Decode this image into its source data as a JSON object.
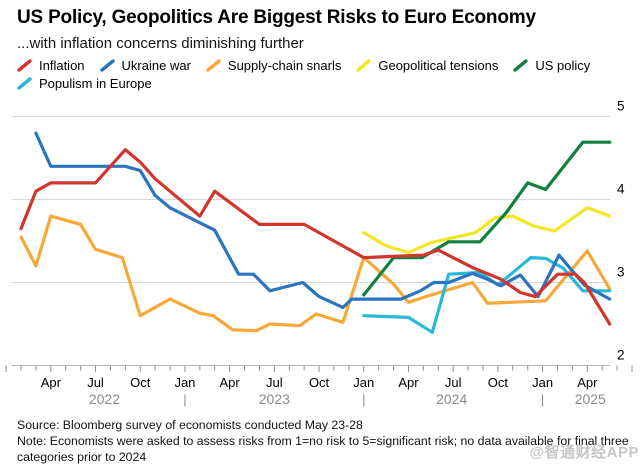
{
  "header": {
    "title": "US Policy, Geopolitics Are Biggest Risks to Euro Economy",
    "subtitle": "...with inflation concerns diminishing further"
  },
  "legend": [
    {
      "label": "Inflation",
      "color": "#d0352e"
    },
    {
      "label": "Ukraine war",
      "color": "#2b74c0"
    },
    {
      "label": "Supply-chain snarls",
      "color": "#f7a839"
    },
    {
      "label": "Geopolitical tensions",
      "color": "#f2e722"
    },
    {
      "label": "US policy",
      "color": "#11803e"
    },
    {
      "label": "Populism in Europe",
      "color": "#28b8d8"
    }
  ],
  "chart_data": {
    "type": "line",
    "title": "US Policy, Geopolitics Are Biggest Risks to Euro Economy",
    "subtitle": "...with inflation concerns diminishing further",
    "x_axis": {
      "note": "month index 0 = Feb 2022, last point = late-May 2025 survey",
      "ticks": [
        {
          "m": 2,
          "label": "Apr"
        },
        {
          "m": 5,
          "label": "Jul"
        },
        {
          "m": 8,
          "label": "Oct"
        },
        {
          "m": 11,
          "label": "Jan"
        },
        {
          "m": 14,
          "label": "Apr"
        },
        {
          "m": 17,
          "label": "Jul"
        },
        {
          "m": 20,
          "label": "Oct"
        },
        {
          "m": 23,
          "label": "Jan"
        },
        {
          "m": 26,
          "label": "Apr"
        },
        {
          "m": 29,
          "label": "Jul"
        },
        {
          "m": 32,
          "label": "Oct"
        },
        {
          "m": 35,
          "label": "Jan"
        },
        {
          "m": 38,
          "label": "Apr"
        }
      ],
      "years": [
        {
          "label": "2022",
          "center_m": 5.6,
          "pipe_m": null
        },
        {
          "label": "2023",
          "center_m": 17.0,
          "pipe_m": 11
        },
        {
          "label": "2024",
          "center_m": 28.9,
          "pipe_m": 23
        },
        {
          "label": "2025",
          "center_m": 38.2,
          "pipe_m": 35
        }
      ]
    },
    "y_axis": {
      "range": [
        2,
        5
      ],
      "ticks": [
        5,
        4,
        3,
        2
      ],
      "meaning": "risk score: 1=no risk, 5=significant risk"
    },
    "grid": "horizontal gridlines at each y tick, monthly tick marks on baseline",
    "legend_position": "top, two rows, slash markers",
    "series": [
      {
        "name": "Supply-chain snarls",
        "color": "#f7a839",
        "points": [
          [
            0,
            3.55
          ],
          [
            1,
            3.2
          ],
          [
            2,
            3.8
          ],
          [
            4,
            3.7
          ],
          [
            5,
            3.4
          ],
          [
            6.8,
            3.3
          ],
          [
            8,
            2.6
          ],
          [
            10,
            2.8
          ],
          [
            12,
            2.63
          ],
          [
            12.9,
            2.6
          ],
          [
            14.2,
            2.43
          ],
          [
            15.8,
            2.42
          ],
          [
            16.7,
            2.5
          ],
          [
            18.7,
            2.48
          ],
          [
            19.8,
            2.62
          ],
          [
            21.6,
            2.52
          ],
          [
            23,
            3.3
          ],
          [
            25,
            2.98
          ],
          [
            26,
            2.76
          ],
          [
            27,
            2.82
          ],
          [
            30.3,
            3.0
          ],
          [
            31.3,
            2.75
          ],
          [
            35.2,
            2.78
          ],
          [
            38,
            3.38
          ],
          [
            39.5,
            2.92
          ]
        ]
      },
      {
        "name": "Populism in Europe",
        "color": "#28b8d8",
        "points": [
          [
            23,
            2.6
          ],
          [
            26,
            2.58
          ],
          [
            27.6,
            2.4
          ],
          [
            28.7,
            3.1
          ],
          [
            30.8,
            3.12
          ],
          [
            32,
            2.97
          ],
          [
            34.2,
            3.3
          ],
          [
            35.2,
            3.29
          ],
          [
            36.4,
            3.17
          ],
          [
            37.7,
            2.9
          ],
          [
            39.5,
            2.9
          ]
        ]
      },
      {
        "name": "Ukraine war",
        "color": "#2b74c0",
        "points": [
          [
            1,
            4.8
          ],
          [
            2,
            4.4
          ],
          [
            7,
            4.4
          ],
          [
            8,
            4.35
          ],
          [
            9,
            4.05
          ],
          [
            10,
            3.9
          ],
          [
            13,
            3.63
          ],
          [
            14.6,
            3.1
          ],
          [
            15.6,
            3.1
          ],
          [
            16.7,
            2.9
          ],
          [
            18.9,
            3.0
          ],
          [
            20,
            2.83
          ],
          [
            21.6,
            2.7
          ],
          [
            22.2,
            2.8
          ],
          [
            25.5,
            2.8
          ],
          [
            26.8,
            2.9
          ],
          [
            27.7,
            3.0
          ],
          [
            28.7,
            3.0
          ],
          [
            30.3,
            3.11
          ],
          [
            31.3,
            3.04
          ],
          [
            32.2,
            2.96
          ],
          [
            33.5,
            3.09
          ],
          [
            34.7,
            2.83
          ],
          [
            36.1,
            3.33
          ],
          [
            37.8,
            2.97
          ],
          [
            39.5,
            2.8
          ]
        ]
      },
      {
        "name": "Geopolitical tensions",
        "color": "#f2e722",
        "points": [
          [
            23,
            3.6
          ],
          [
            24.4,
            3.45
          ],
          [
            26,
            3.36
          ],
          [
            27.5,
            3.48
          ],
          [
            30.5,
            3.6
          ],
          [
            31.8,
            3.78
          ],
          [
            33,
            3.8
          ],
          [
            34.4,
            3.68
          ],
          [
            35.8,
            3.62
          ],
          [
            38,
            3.9
          ],
          [
            39.5,
            3.8
          ]
        ]
      },
      {
        "name": "US policy",
        "color": "#11803e",
        "points": [
          [
            23,
            2.85
          ],
          [
            25,
            3.3
          ],
          [
            26.9,
            3.3
          ],
          [
            28.7,
            3.49
          ],
          [
            30.8,
            3.49
          ],
          [
            32.6,
            3.85
          ],
          [
            34,
            4.2
          ],
          [
            35.2,
            4.12
          ],
          [
            36.6,
            4.44
          ],
          [
            37.7,
            4.69
          ],
          [
            39.5,
            4.69
          ]
        ]
      },
      {
        "name": "Inflation",
        "color": "#d0352e",
        "points": [
          [
            0,
            3.65
          ],
          [
            1,
            4.1
          ],
          [
            2,
            4.2
          ],
          [
            5,
            4.2
          ],
          [
            7,
            4.6
          ],
          [
            8,
            4.45
          ],
          [
            9,
            4.25
          ],
          [
            12,
            3.8
          ],
          [
            13,
            4.1
          ],
          [
            16,
            3.7
          ],
          [
            19,
            3.7
          ],
          [
            23,
            3.3
          ],
          [
            27,
            3.33
          ],
          [
            28,
            3.39
          ],
          [
            30.3,
            3.18
          ],
          [
            32.2,
            3.04
          ],
          [
            33.5,
            2.88
          ],
          [
            34.5,
            2.83
          ],
          [
            36,
            3.1
          ],
          [
            37.2,
            3.1
          ],
          [
            37.8,
            3.0
          ],
          [
            39.5,
            2.5
          ]
        ]
      }
    ]
  },
  "footer": {
    "source": "Source: Bloomberg survey of economists conducted May 23-28",
    "note": "Note: Economists were asked to assess risks from 1=no risk to 5=significant risk; no data available for final three categories prior to 2024"
  },
  "watermark": "@智通财经APP"
}
